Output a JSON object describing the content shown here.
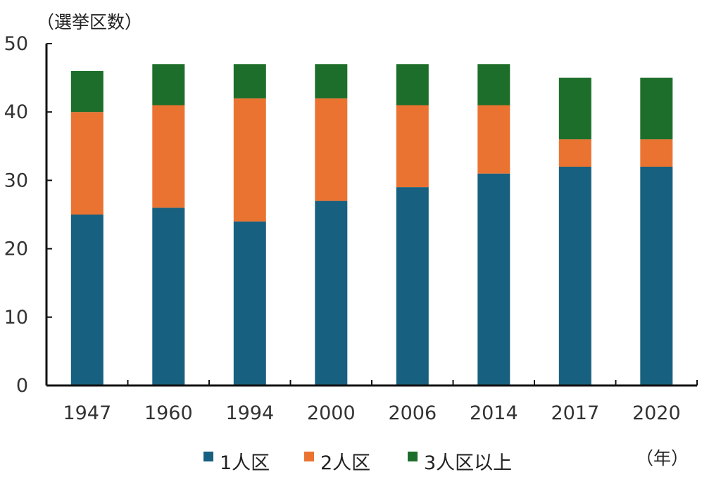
{
  "chart_data": {
    "type": "bar",
    "stacked": true,
    "y_unit_label": "（選挙区数）",
    "x_unit_label": "（年）",
    "categories": [
      "1947",
      "1960",
      "1994",
      "2000",
      "2006",
      "2014",
      "2017",
      "2020"
    ],
    "series": [
      {
        "name": "1人区",
        "color": "#17607f",
        "values": [
          25,
          26,
          24,
          27,
          29,
          31,
          32,
          32
        ]
      },
      {
        "name": "2人区",
        "color": "#eb7331",
        "values": [
          15,
          15,
          18,
          15,
          12,
          10,
          4,
          4
        ]
      },
      {
        "name": "3人区以上",
        "color": "#1d6e2a",
        "values": [
          6,
          6,
          5,
          5,
          6,
          6,
          9,
          9
        ]
      }
    ],
    "ylim": [
      0,
      50
    ],
    "yticks": [
      0,
      10,
      20,
      30,
      40,
      50
    ],
    "grid": false,
    "legend_position": "bottom"
  }
}
